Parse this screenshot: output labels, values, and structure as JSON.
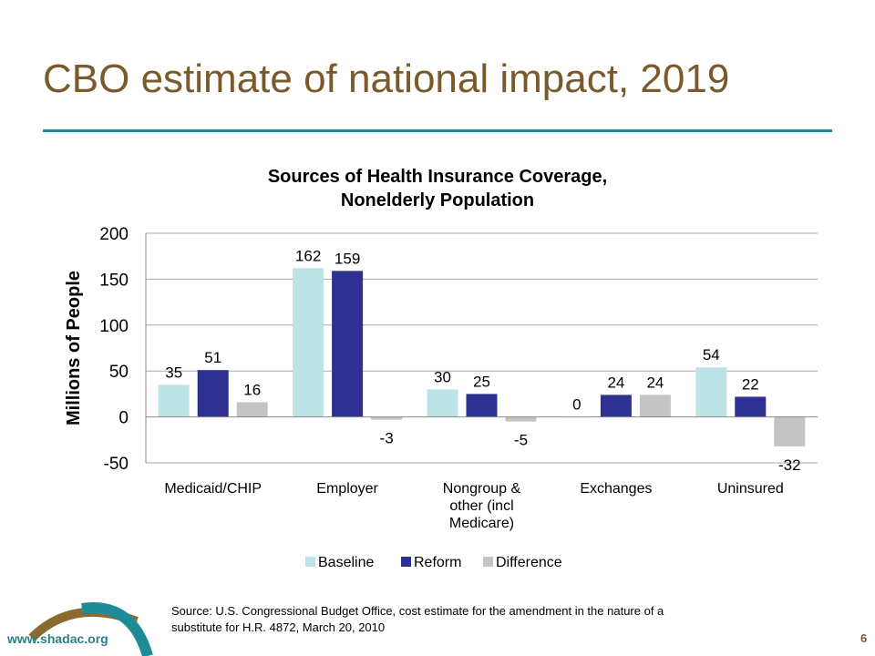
{
  "slide": {
    "title": "CBO estimate of national impact, 2019",
    "source_line1": "Source:  U.S. Congressional Budget Office,  cost estimate for the amendment in the nature of a",
    "source_line2": "substitute for H.R. 4872, March 20, 2010",
    "website": "www.shadac.org",
    "page_number": "6"
  },
  "colors": {
    "title": "#7a5a2a",
    "rule": "#1e8c96",
    "baseline": "#bde3e6",
    "reform": "#2e3192",
    "difference": "#c4c4c4"
  },
  "chart_data": {
    "type": "bar",
    "title_line1": "Sources of Health Insurance Coverage,",
    "title_line2": "Nonelderly Population",
    "ylabel": "Millions of People",
    "xlabel": "",
    "ylim": [
      -50,
      200
    ],
    "yticks": [
      "-50",
      "0",
      "50",
      "100",
      "150",
      "200"
    ],
    "grid": true,
    "legend_position": "bottom",
    "categories": [
      [
        "Medicaid/CHIP"
      ],
      [
        "Employer"
      ],
      [
        "Nongroup &",
        "other (incl",
        "Medicare)"
      ],
      [
        "Exchanges"
      ],
      [
        "Uninsured"
      ]
    ],
    "series": [
      {
        "name": "Baseline",
        "values": [
          35,
          162,
          30,
          0,
          54
        ],
        "labels": [
          "35",
          "162",
          "30",
          "0",
          "54"
        ]
      },
      {
        "name": "Reform",
        "values": [
          51,
          159,
          25,
          24,
          22
        ],
        "labels": [
          "51",
          "159",
          "25",
          "24",
          "22"
        ]
      },
      {
        "name": "Difference",
        "values": [
          16,
          -3,
          -5,
          24,
          -32
        ],
        "labels": [
          "16",
          "-3",
          "-5",
          "24",
          "-32"
        ]
      }
    ]
  }
}
